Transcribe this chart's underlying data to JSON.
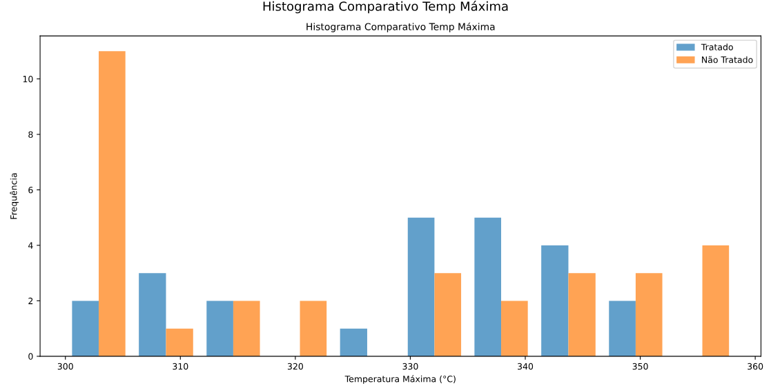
{
  "chart_data": {
    "type": "histogram",
    "title": "Histograma Comparativo Temp Máxima",
    "subtitle": "Histograma Comparativo Temp Máxima",
    "xlabel": "Temperatura Máxima (°C)",
    "ylabel": "Frequência",
    "bins": [
      300,
      305.8,
      311.7,
      317.5,
      323.3,
      329.2,
      335.0,
      340.8,
      346.7,
      352.5,
      358.3
    ],
    "series": [
      {
        "name": "Tratado",
        "color": "#62a0cb",
        "values": [
          2,
          3,
          2,
          0,
          1,
          5,
          5,
          4,
          2,
          0
        ]
      },
      {
        "name": "Não Tratado",
        "color": "#ffa354",
        "values": [
          11,
          1,
          2,
          2,
          0,
          3,
          2,
          3,
          3,
          4
        ]
      }
    ],
    "xlim": [
      297.8,
      360.5
    ],
    "xticks": [
      300,
      310,
      320,
      330,
      340,
      350,
      360
    ],
    "ylim": [
      0,
      11.55
    ],
    "yticks": [
      0,
      2,
      4,
      6,
      8,
      10
    ],
    "legend": "top right",
    "grid": false
  }
}
